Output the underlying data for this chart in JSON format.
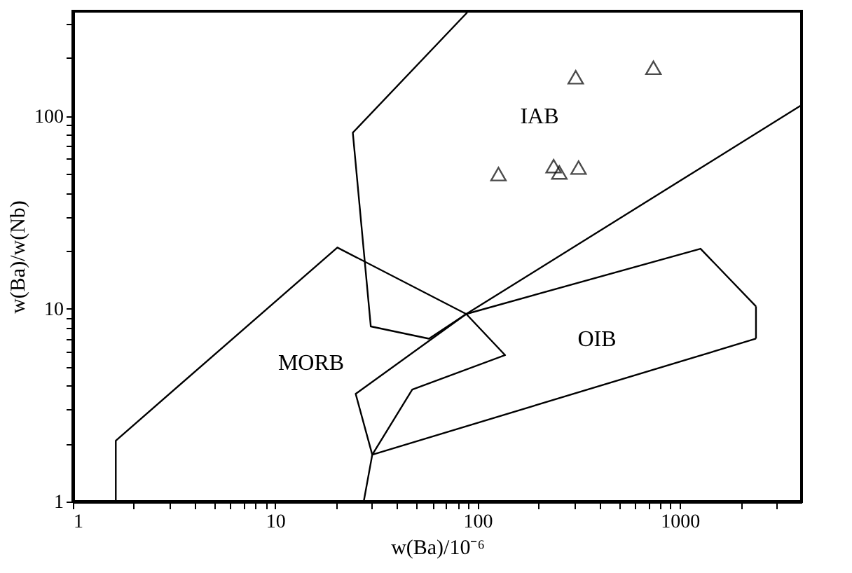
{
  "chart_data": {
    "type": "line",
    "xlabel": "w(Ba)/10⁻⁶",
    "ylabel": "w(Ba)/w(Nb)",
    "log": "xy",
    "grid": false,
    "xlim": [
      1,
      4000
    ],
    "ylim": [
      1,
      350
    ],
    "xticks": [
      1,
      {
        "value": 2,
        "label": null
      },
      {
        "value": 3,
        "label": null
      },
      {
        "value": 4,
        "label": null
      },
      {
        "value": 5,
        "label": null
      },
      {
        "value": 6,
        "label": null
      },
      {
        "value": 7,
        "label": null
      },
      {
        "value": 8,
        "label": null
      },
      {
        "value": 9,
        "label": null
      },
      10,
      {
        "value": 20,
        "label": null
      },
      {
        "value": 30,
        "label": null
      },
      {
        "value": 40,
        "label": null
      },
      {
        "value": 50,
        "label": null
      },
      {
        "value": 60,
        "label": null
      },
      {
        "value": 70,
        "label": null
      },
      {
        "value": 80,
        "label": null
      },
      {
        "value": 90,
        "label": null
      },
      100,
      {
        "value": 200,
        "label": null
      },
      {
        "value": 300,
        "label": null
      },
      {
        "value": 400,
        "label": null
      },
      {
        "value": 500,
        "label": null
      },
      {
        "value": 600,
        "label": null
      },
      {
        "value": 700,
        "label": null
      },
      {
        "value": 800,
        "label": null
      },
      {
        "value": 900,
        "label": null
      },
      1000,
      {
        "value": 2000,
        "label": null
      },
      {
        "value": 3000,
        "label": null
      }
    ],
    "yticks": [
      1,
      {
        "value": 2,
        "label": null
      },
      {
        "value": 3,
        "label": null
      },
      {
        "value": 4,
        "label": null
      },
      {
        "value": 5,
        "label": null
      },
      {
        "value": 6,
        "label": null
      },
      {
        "value": 7,
        "label": null
      },
      {
        "value": 8,
        "label": null
      },
      {
        "value": 9,
        "label": null
      },
      10,
      {
        "value": 20,
        "label": null
      },
      {
        "value": 30,
        "label": null
      },
      {
        "value": 40,
        "label": null
      },
      {
        "value": 50,
        "label": null
      },
      {
        "value": 60,
        "label": null
      },
      {
        "value": 70,
        "label": null
      },
      {
        "value": 80,
        "label": null
      },
      {
        "value": 90,
        "label": null
      },
      100,
      {
        "value": 200,
        "label": null
      },
      {
        "value": 300,
        "label": null
      }
    ],
    "series": [
      {
        "color": "#000000",
        "marker": "none",
        "line_style": "solid",
        "x": [
          89,
          24.2,
          29.7,
          57.6,
          88,
          4000
        ],
        "values": [
          345,
          82,
          8.1,
          7.0,
          9.4,
          114
        ]
      },
      {
        "color": "#000000",
        "marker": "none",
        "line_style": "solid",
        "x": [
          1.63,
          1.63,
          20.3,
          88,
          137,
          47.6,
          30.2,
          27.4
        ],
        "values": [
          1,
          2.07,
          20.8,
          9.4,
          5.75,
          3.81,
          1.75,
          1
        ]
      },
      {
        "color": "#000000",
        "marker": "none",
        "line_style": "solid",
        "x": [
          2381,
          30.2,
          25,
          88,
          1267,
          2381
        ],
        "values": [
          7.0,
          1.75,
          3.62,
          9.4,
          20.5,
          10.3
        ]
      },
      {
        "color": "#000000",
        "marker": "none",
        "line_style": "solid",
        "x": [
          2381,
          2381
        ],
        "values": [
          10.3,
          7.0
        ]
      },
      {
        "type": "scatter",
        "color": "#000000",
        "marker": "triangle",
        "x": [
          306,
          741,
          127,
          238,
          254,
          316
        ],
        "values": [
          159,
          178,
          50,
          55,
          51,
          54
        ]
      }
    ],
    "annotations": [
      "IAB",
      "MORB",
      "OIB"
    ]
  }
}
